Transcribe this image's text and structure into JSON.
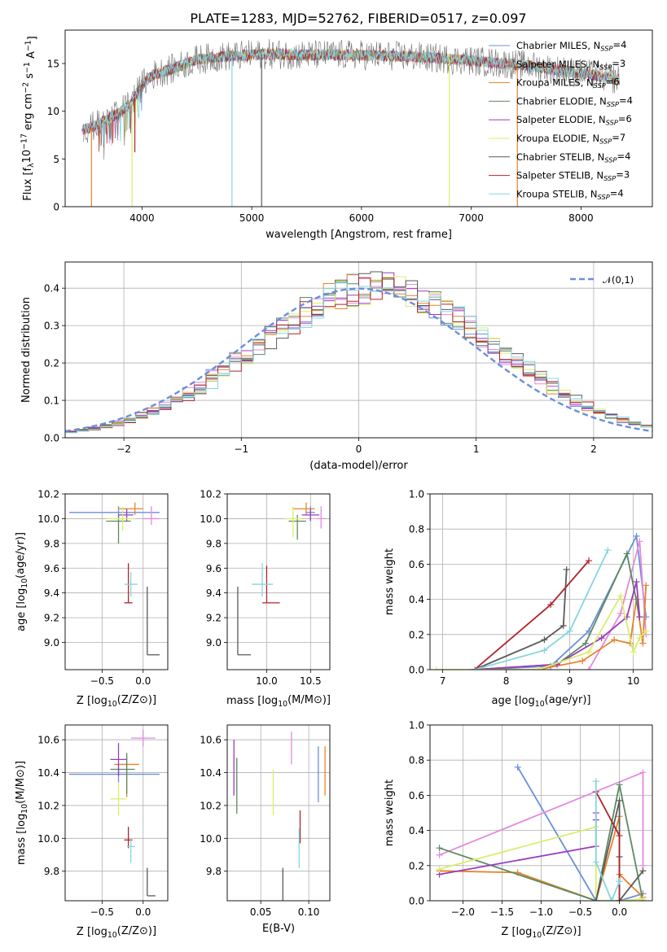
{
  "figure_title": "PLATE=1283, MJD=52762, FIBERID=0517, z=0.097",
  "colors": {
    "Chabrier MILES": "#6a8fdc",
    "Salpeter MILES": "#e58adc",
    "Kroupa MILES": "#e7822a",
    "Chabrier ELODIE": "#5c8a63",
    "Salpeter ELODIE": "#9a3cbf",
    "Kroupa ELODIE": "#d9ee6a",
    "Chabrier STELIB": "#5a5a5a",
    "Salpeter STELIB": "#b0242a",
    "Kroupa STELIB": "#84d6e0"
  },
  "chart_data": [
    {
      "id": "spectrum",
      "type": "line",
      "title": "PLATE=1283, MJD=52762, FIBERID=0517, z=0.097",
      "xlabel": "wavelength [Angstrom, rest frame]",
      "ylabel": "Flux [f_λ10^-17 erg cm^-2 s^-1 A^-1]",
      "xlim": [
        3300,
        8650
      ],
      "ylim": [
        0,
        18.5
      ],
      "xticks": [
        4000,
        5000,
        6000,
        7000,
        8000
      ],
      "yticks": [
        0,
        5,
        10,
        15
      ],
      "grid": false,
      "legend_position": "top-right",
      "legend": [
        "Chabrier MILES, N_SSP=4",
        "Salpeter MILES, N_SSP=3",
        "Kroupa MILES, N_SSP=6",
        "Chabrier ELODIE, N_SSP=4",
        "Salpeter ELODIE, N_SSP=6",
        "Kroupa ELODIE, N_SSP=7",
        "Chabrier STELIB, N_SSP=4",
        "Salpeter STELIB, N_SSP=3",
        "Kroupa STELIB, N_SSP=4"
      ],
      "data_x_range": [
        3450,
        8350
      ],
      "continuum": {
        "x": [
          3450,
          3600,
          3700,
          3800,
          3900,
          4000,
          4100,
          4200,
          4300,
          4400,
          4500,
          4700,
          5000,
          5200,
          5500,
          6000,
          6500,
          7000,
          7500,
          8000,
          8350
        ],
        "y": [
          8.0,
          8.6,
          9.2,
          9.9,
          10.8,
          12.8,
          13.8,
          14.2,
          14.5,
          15.0,
          15.4,
          15.7,
          15.9,
          16.0,
          15.9,
          15.9,
          15.7,
          15.3,
          14.8,
          14.0,
          13.3
        ]
      },
      "absorption_dips": [
        {
          "x": 3540,
          "series": "Kroupa MILES",
          "depth": 0
        },
        {
          "x": 3910,
          "series": "Kroupa ELODIE",
          "depth": 0
        },
        {
          "x": 3935,
          "series": "Salpeter STELIB",
          "depth": 5.7
        },
        {
          "x": 4820,
          "series": "Kroupa STELIB",
          "depth": 0
        },
        {
          "x": 5090,
          "series": "Chabrier STELIB",
          "depth": 0
        },
        {
          "x": 6800,
          "series": "Kroupa ELODIE",
          "depth": 0
        },
        {
          "x": 7420,
          "series": "Kroupa MILES",
          "depth": 0
        }
      ]
    },
    {
      "id": "residuals",
      "type": "histogram",
      "xlabel": "(data-model)/error",
      "ylabel": "Normed distribution",
      "xlim": [
        -2.5,
        2.5
      ],
      "ylim": [
        0,
        0.47
      ],
      "xticks": [
        -2,
        -1,
        0,
        1,
        2
      ],
      "yticks": [
        0.0,
        0.1,
        0.2,
        0.3,
        0.4
      ],
      "grid": true,
      "bin_width": 0.1,
      "reference_curve": {
        "name": "𝒩(0,1)",
        "mean": 0,
        "sigma": 1,
        "style": "dashed"
      },
      "legend_position": "top-right",
      "peak": 0.4,
      "peak_x": 0.15,
      "width_sigma": 1.02
    },
    {
      "id": "age-vs-Z",
      "type": "errorbar",
      "xlabel": "Z [log10(Z/Z⊙)]",
      "ylabel": "age  [log10(age/yr)]",
      "xlim": [
        -0.95,
        0.3
      ],
      "ylim": [
        8.78,
        10.2
      ],
      "xticks": [
        -0.5,
        0.0
      ],
      "yticks": [
        9.0,
        9.2,
        9.4,
        9.6,
        9.8,
        10.0,
        10.2
      ],
      "points": [
        {
          "series": "Chabrier MILES",
          "x": -0.3,
          "y": 10.05,
          "xerr": [
            0.6,
            0.5
          ],
          "yerr": [
            0.05,
            0.05
          ]
        },
        {
          "series": "Salpeter MILES",
          "x": 0.1,
          "y": 10.0,
          "xerr": [
            0.1,
            0.1
          ],
          "yerr": [
            0.05,
            0.1
          ]
        },
        {
          "series": "Kroupa MILES",
          "x": -0.1,
          "y": 10.08,
          "xerr": [
            0.2,
            0.1
          ],
          "yerr": [
            0.05,
            0.05
          ]
        },
        {
          "series": "Chabrier ELODIE",
          "x": -0.3,
          "y": 9.98,
          "xerr": [
            0.15,
            0.15
          ],
          "yerr": [
            0.18,
            0.05
          ]
        },
        {
          "series": "Salpeter ELODIE",
          "x": -0.2,
          "y": 10.03,
          "xerr": [
            0.1,
            0.08
          ],
          "yerr": [
            0.05,
            0.05
          ]
        },
        {
          "series": "Kroupa ELODIE",
          "x": -0.25,
          "y": 10.0,
          "xerr": [
            0.2,
            0.15
          ],
          "yerr": [
            0.1,
            0.1
          ]
        },
        {
          "series": "Chabrier STELIB",
          "x": 0.05,
          "y": 8.9,
          "xerr": [
            0.0,
            0.15
          ],
          "yerr": [
            0.0,
            0.55
          ]
        },
        {
          "series": "Salpeter STELIB",
          "x": -0.18,
          "y": 9.32,
          "xerr": [
            0.05,
            0.05
          ],
          "yerr": [
            0.0,
            0.32
          ]
        },
        {
          "series": "Kroupa STELIB",
          "x": -0.15,
          "y": 9.47,
          "xerr": [
            0.08,
            0.08
          ],
          "yerr": [
            0.1,
            0.1
          ]
        }
      ]
    },
    {
      "id": "age-vs-mass",
      "type": "errorbar",
      "xlabel": "mass [log10(M/M⊙)]",
      "ylabel": "",
      "xlim": [
        9.55,
        10.72
      ],
      "ylim": [
        8.78,
        10.2
      ],
      "xticks": [
        10.0,
        10.5
      ],
      "yticks": [
        9.0,
        9.2,
        9.4,
        9.6,
        9.8,
        10.0,
        10.2
      ],
      "points": [
        {
          "series": "Chabrier MILES",
          "x": 10.5,
          "y": 10.05,
          "xerr": [
            0.05,
            0.05
          ],
          "yerr": [
            0.05,
            0.05
          ]
        },
        {
          "series": "Salpeter MILES",
          "x": 10.62,
          "y": 10.0,
          "xerr": [
            0.05,
            0.05
          ],
          "yerr": [
            0.08,
            0.1
          ]
        },
        {
          "series": "Kroupa MILES",
          "x": 10.45,
          "y": 10.08,
          "xerr": [
            0.15,
            0.1
          ],
          "yerr": [
            0.05,
            0.05
          ]
        },
        {
          "series": "Chabrier ELODIE",
          "x": 10.35,
          "y": 9.98,
          "xerr": [
            0.1,
            0.1
          ],
          "yerr": [
            0.15,
            0.05
          ]
        },
        {
          "series": "Salpeter ELODIE",
          "x": 10.5,
          "y": 10.03,
          "xerr": [
            0.1,
            0.1
          ],
          "yerr": [
            0.05,
            0.05
          ]
        },
        {
          "series": "Kroupa ELODIE",
          "x": 10.3,
          "y": 10.0,
          "xerr": [
            0.1,
            0.1
          ],
          "yerr": [
            0.15,
            0.1
          ]
        },
        {
          "series": "Chabrier STELIB",
          "x": 9.67,
          "y": 8.9,
          "xerr": [
            0.0,
            0.15
          ],
          "yerr": [
            0.0,
            0.55
          ]
        },
        {
          "series": "Salpeter STELIB",
          "x": 10.0,
          "y": 9.32,
          "xerr": [
            0.05,
            0.15
          ],
          "yerr": [
            0.0,
            0.3
          ]
        },
        {
          "series": "Kroupa STELIB",
          "x": 9.95,
          "y": 9.47,
          "xerr": [
            0.12,
            0.12
          ],
          "yerr": [
            0.1,
            0.17
          ]
        }
      ]
    },
    {
      "id": "weight-vs-age",
      "type": "line",
      "xlabel": "age  [log10(age/yr)]",
      "ylabel": "mass weight",
      "xlim": [
        6.8,
        10.3
      ],
      "ylim": [
        0,
        1.0
      ],
      "xticks": [
        7,
        8,
        9,
        10
      ],
      "yticks": [
        0.0,
        0.2,
        0.4,
        0.6,
        0.8,
        1.0
      ],
      "grid": true,
      "series": [
        {
          "name": "Chabrier MILES",
          "x": [
            7.5,
            8.7,
            9.3,
            10.05,
            10.2
          ],
          "y": [
            0.0,
            0.02,
            0.22,
            0.76,
            0.3
          ]
        },
        {
          "name": "Salpeter MILES",
          "x": [
            9.3,
            9.8,
            10.1,
            10.2
          ],
          "y": [
            0.0,
            0.32,
            0.73,
            0.2
          ]
        },
        {
          "name": "Kroupa MILES",
          "x": [
            7.5,
            8.5,
            9.2,
            9.7,
            9.95,
            10.05,
            10.15,
            10.2
          ],
          "y": [
            0.0,
            0.0,
            0.05,
            0.17,
            0.15,
            0.4,
            0.15,
            0.48
          ]
        },
        {
          "name": "Chabrier ELODIE",
          "x": [
            7.5,
            8.8,
            9.25,
            9.9,
            10.1
          ],
          "y": [
            0.0,
            0.03,
            0.15,
            0.66,
            0.3
          ]
        },
        {
          "name": "Salpeter ELODIE",
          "x": [
            7.5,
            8.8,
            9.5,
            9.9,
            10.05,
            10.1
          ],
          "y": [
            0.0,
            0.03,
            0.18,
            0.3,
            0.5,
            0.3
          ]
        },
        {
          "name": "Kroupa ELODIE",
          "x": [
            6.9,
            8.5,
            9.3,
            9.8,
            10.0,
            10.1,
            10.2
          ],
          "y": [
            0.0,
            0.0,
            0.1,
            0.42,
            0.1,
            0.18,
            0.22
          ]
        },
        {
          "name": "Chabrier STELIB",
          "x": [
            7.5,
            8.6,
            8.9,
            8.95
          ],
          "y": [
            0.0,
            0.17,
            0.25,
            0.57
          ]
        },
        {
          "name": "Salpeter STELIB",
          "x": [
            7.5,
            8.7,
            9.3
          ],
          "y": [
            0.0,
            0.37,
            0.62
          ]
        },
        {
          "name": "Kroupa STELIB",
          "x": [
            7.5,
            8.6,
            9.0,
            9.6
          ],
          "y": [
            0.0,
            0.11,
            0.22,
            0.68
          ]
        }
      ]
    },
    {
      "id": "mass-vs-Z",
      "type": "errorbar",
      "xlabel": "Z [log10(Z/Z⊙)]",
      "ylabel": "mass [log10(M/M⊙)]",
      "xlim": [
        -0.95,
        0.3
      ],
      "ylim": [
        9.62,
        10.69
      ],
      "xticks": [
        -0.5,
        0.0
      ],
      "yticks": [
        9.8,
        10.0,
        10.2,
        10.4,
        10.6
      ],
      "points": [
        {
          "series": "Chabrier MILES",
          "x": -0.3,
          "y": 10.39,
          "xerr": [
            0.6,
            0.5
          ],
          "yerr": [
            0.05,
            0.05
          ]
        },
        {
          "series": "Salpeter MILES",
          "x": 0.0,
          "y": 10.61,
          "xerr": [
            0.15,
            0.15
          ],
          "yerr": [
            0.05,
            0.05
          ]
        },
        {
          "series": "Kroupa MILES",
          "x": -0.2,
          "y": 10.45,
          "xerr": [
            0.15,
            0.15
          ],
          "yerr": [
            0.2,
            0.05
          ]
        },
        {
          "series": "Chabrier ELODIE",
          "x": -0.2,
          "y": 10.42,
          "xerr": [
            0.2,
            0.1
          ],
          "yerr": [
            0.15,
            0.1
          ]
        },
        {
          "series": "Salpeter ELODIE",
          "x": -0.3,
          "y": 10.48,
          "xerr": [
            0.1,
            0.1
          ],
          "yerr": [
            0.1,
            0.1
          ]
        },
        {
          "series": "Kroupa ELODIE",
          "x": -0.3,
          "y": 10.24,
          "xerr": [
            0.1,
            0.1
          ],
          "yerr": [
            0.1,
            0.1
          ]
        },
        {
          "series": "Chabrier STELIB",
          "x": 0.05,
          "y": 9.65,
          "xerr": [
            0.0,
            0.1
          ],
          "yerr": [
            0.0,
            0.17
          ]
        },
        {
          "series": "Salpeter STELIB",
          "x": -0.18,
          "y": 9.99,
          "xerr": [
            0.05,
            0.05
          ],
          "yerr": [
            0.05,
            0.08
          ]
        },
        {
          "series": "Kroupa STELIB",
          "x": -0.15,
          "y": 9.95,
          "xerr": [
            0.05,
            0.05
          ],
          "yerr": [
            0.1,
            0.05
          ]
        }
      ]
    },
    {
      "id": "mass-vs-EBV",
      "type": "errorbar",
      "xlabel": "E(B-V)",
      "ylabel": "",
      "xlim": [
        0.015,
        0.122
      ],
      "ylim": [
        9.62,
        10.69
      ],
      "xticks": [
        0.05,
        0.1
      ],
      "yticks": [
        9.8,
        10.0,
        10.2,
        10.4,
        10.6
      ],
      "points": [
        {
          "series": "Chabrier MILES",
          "x": 0.11,
          "y": 10.39,
          "xerr": [
            0,
            0
          ],
          "yerr": [
            0.17,
            0.17
          ]
        },
        {
          "series": "Salpeter MILES",
          "x": 0.082,
          "y": 10.55,
          "xerr": [
            0,
            0
          ],
          "yerr": [
            0.1,
            0.1
          ]
        },
        {
          "series": "Kroupa MILES",
          "x": 0.117,
          "y": 10.41,
          "xerr": [
            0,
            0
          ],
          "yerr": [
            0.15,
            0.15
          ]
        },
        {
          "series": "Chabrier ELODIE",
          "x": 0.025,
          "y": 10.32,
          "xerr": [
            0,
            0
          ],
          "yerr": [
            0.17,
            0.17
          ]
        },
        {
          "series": "Salpeter ELODIE",
          "x": 0.022,
          "y": 10.43,
          "xerr": [
            0,
            0
          ],
          "yerr": [
            0.17,
            0.17
          ]
        },
        {
          "series": "Kroupa ELODIE",
          "x": 0.063,
          "y": 10.28,
          "xerr": [
            0,
            0
          ],
          "yerr": [
            0.14,
            0.14
          ]
        },
        {
          "series": "Chabrier STELIB",
          "x": 0.073,
          "y": 9.72,
          "xerr": [
            0,
            0
          ],
          "yerr": [
            0.1,
            0.1
          ]
        },
        {
          "series": "Salpeter STELIB",
          "x": 0.091,
          "y": 10.07,
          "xerr": [
            0,
            0
          ],
          "yerr": [
            0.1,
            0.1
          ]
        },
        {
          "series": "Kroupa STELIB",
          "x": 0.09,
          "y": 9.94,
          "xerr": [
            0,
            0
          ],
          "yerr": [
            0.12,
            0.12
          ]
        }
      ]
    },
    {
      "id": "weight-vs-Z",
      "type": "line",
      "xlabel": "Z [log10(Z/Z⊙)]",
      "ylabel": "mass weight",
      "xlim": [
        -2.42,
        0.42
      ],
      "ylim": [
        0,
        1.0
      ],
      "xticks": [
        -2.0,
        -1.5,
        -1.0,
        -0.5,
        0.0
      ],
      "yticks": [
        0.0,
        0.2,
        0.4,
        0.6,
        0.8,
        1.0
      ],
      "grid": true,
      "series": [
        {
          "name": "Chabrier MILES",
          "x": [
            -1.3,
            -0.3,
            0.0,
            0.3
          ],
          "y": [
            0.76,
            0.0,
            0.0,
            0.04
          ]
        },
        {
          "name": "Salpeter MILES",
          "x": [
            -2.3,
            0.3,
            0.3
          ],
          "y": [
            0.26,
            0.73,
            0.2
          ]
        },
        {
          "name": "Kroupa MILES",
          "x": [
            -2.3,
            -1.3,
            -0.3,
            0.0,
            0.0,
            0.3
          ],
          "y": [
            0.17,
            0.16,
            0.0,
            0.48,
            0.15,
            0.02
          ]
        },
        {
          "name": "Chabrier ELODIE",
          "x": [
            -2.3,
            -0.3,
            0.0,
            0.3
          ],
          "y": [
            0.3,
            0.0,
            0.66,
            0.0
          ]
        },
        {
          "name": "Salpeter ELODIE",
          "x": [
            -2.3,
            -0.3,
            -0.3,
            -0.3
          ],
          "y": [
            0.15,
            0.31,
            0.5,
            0.46
          ]
        },
        {
          "name": "Kroupa ELODIE",
          "x": [
            -2.3,
            -0.3,
            -0.3,
            0.0,
            0.3
          ],
          "y": [
            0.18,
            0.42,
            0.0,
            0.0,
            0.01
          ]
        },
        {
          "name": "Chabrier STELIB",
          "x": [
            -0.3,
            0.0,
            0.0,
            0.0,
            0.3
          ],
          "y": [
            0.0,
            0.57,
            0.25,
            0.0,
            0.17
          ]
        },
        {
          "name": "Salpeter STELIB",
          "x": [
            -0.3,
            0.0,
            0.0
          ],
          "y": [
            0.62,
            0.37,
            0.0
          ]
        },
        {
          "name": "Kroupa STELIB",
          "x": [
            -0.3,
            -0.3,
            -0.1,
            0.0,
            0.0
          ],
          "y": [
            0.68,
            0.22,
            0.0,
            0.11,
            0.11
          ]
        }
      ]
    }
  ]
}
